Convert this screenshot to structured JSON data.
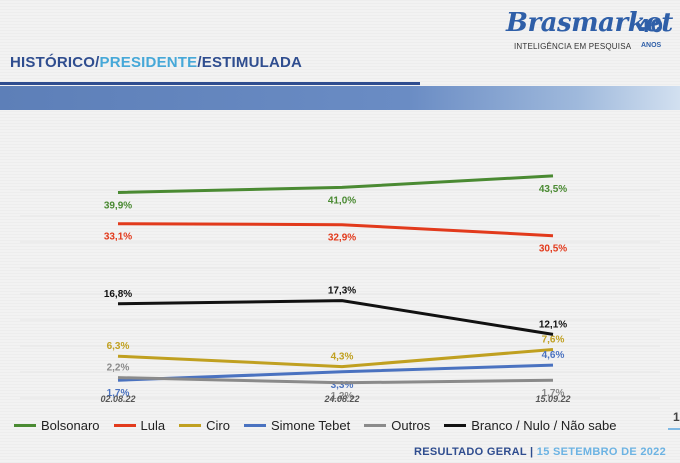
{
  "header": {
    "title_part1": "HISTÓRICO/",
    "title_part2": "PRESIDENTE",
    "title_part3": "/ESTIMULADA"
  },
  "logo": {
    "brand": "Brasmarket",
    "years": "40",
    "tagline": "INTELIGÊNCIA EM PESQUISA",
    "anos": "ANOS"
  },
  "footer": {
    "left": "RESULTADO GERAL",
    "separator": "|",
    "right": "15 SETEMBRO DE 2022"
  },
  "edge_fragment": "1",
  "chart_data": {
    "type": "line",
    "x": [
      "02.08.22",
      "24.08.22",
      "15.09.22"
    ],
    "series": [
      {
        "name": "Bolsonaro",
        "color": "#4a8a32",
        "values": [
          39.9,
          41.0,
          43.5
        ],
        "labels": [
          "39,9%",
          "41,0%",
          "43,5%"
        ]
      },
      {
        "name": "Lula",
        "color": "#e23a1c",
        "values": [
          33.1,
          32.9,
          30.5
        ],
        "labels": [
          "33,1%",
          "32,9%",
          "30,5%"
        ]
      },
      {
        "name": "Ciro",
        "color": "#c0a020",
        "values": [
          6.3,
          4.3,
          7.6
        ],
        "labels": [
          "6,3%",
          "4,3%",
          "7,6%"
        ]
      },
      {
        "name": "Simone Tebet",
        "color": "#4a72c0",
        "values": [
          1.7,
          3.3,
          4.6
        ],
        "labels": [
          "1,7%",
          "3,3%",
          "4,6%"
        ]
      },
      {
        "name": "Outros",
        "color": "#8a8a8a",
        "values": [
          2.2,
          1.2,
          1.7
        ],
        "labels": [
          "2,2%",
          "1,2%",
          "1,7%"
        ]
      },
      {
        "name": "Branco / Nulo / Não sabe",
        "color": "#111111",
        "values": [
          16.8,
          17.3,
          12.1
        ],
        "labels": [
          "16,8%",
          "17,3%",
          "12,1%"
        ]
      }
    ],
    "grid": true,
    "legend_position": "bottom"
  }
}
